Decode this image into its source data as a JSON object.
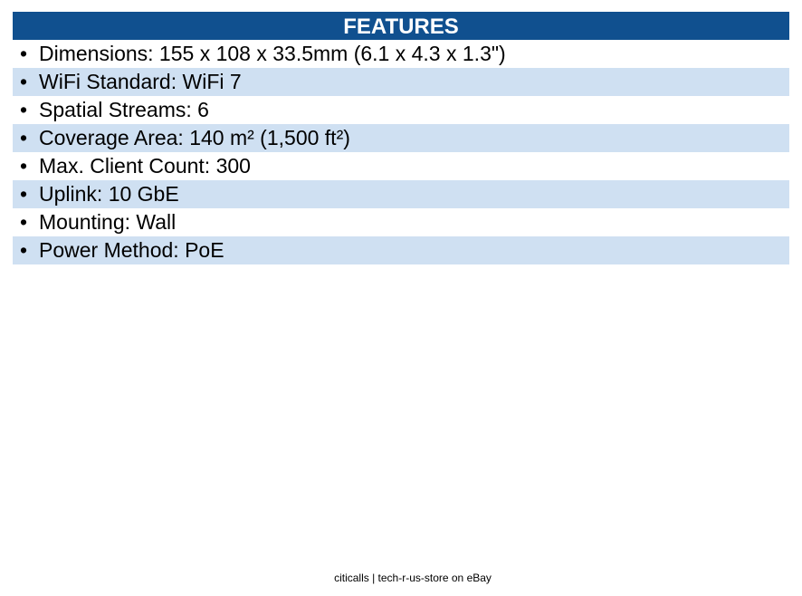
{
  "header": {
    "title": "FEATURES"
  },
  "features": [
    "Dimensions: 155 x 108 x 33.5mm (6.1 x 4.3 x 1.3\")",
    "WiFi Standard: WiFi 7",
    "Spatial Streams: 6",
    "Coverage Area: 140 m² (1,500 ft²)",
    "Max. Client Count: 300",
    "Uplink: 10 GbE",
    "Mounting: Wall",
    "Power Method: PoE"
  ],
  "footer": "citicalls | tech-r-us-store on eBay"
}
